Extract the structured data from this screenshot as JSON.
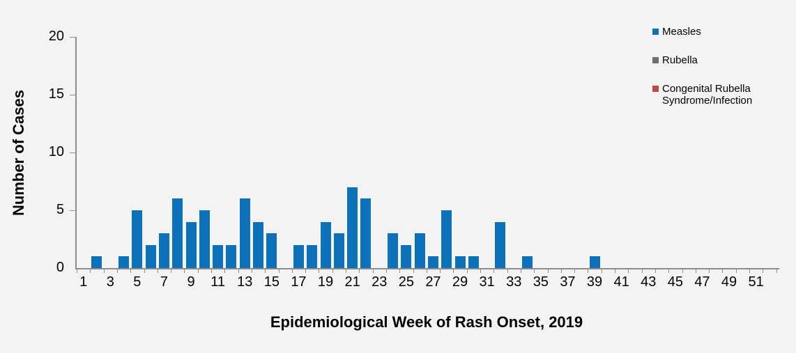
{
  "page": {
    "background": "#F3F3F3"
  },
  "chart_data": {
    "type": "bar",
    "title": "",
    "xlabel": "Epidemiological Week of Rash Onset, 2019",
    "ylabel": "Number of Cases",
    "categories": [
      1,
      2,
      3,
      4,
      5,
      6,
      7,
      8,
      9,
      10,
      11,
      12,
      13,
      14,
      15,
      16,
      17,
      18,
      19,
      20,
      21,
      22,
      23,
      24,
      25,
      26,
      27,
      28,
      29,
      30,
      31,
      32,
      33,
      34,
      35,
      36,
      37,
      38,
      39,
      40,
      41,
      42,
      43,
      44,
      45,
      46,
      47,
      48,
      49,
      50,
      51,
      52
    ],
    "x_tick_labels": [
      "1",
      "3",
      "5",
      "7",
      "9",
      "11",
      "13",
      "15",
      "17",
      "19",
      "21",
      "23",
      "25",
      "27",
      "29",
      "31",
      "33",
      "35",
      "37",
      "39",
      "41",
      "43",
      "45",
      "47",
      "49",
      "51"
    ],
    "y_ticks": [
      0,
      5,
      10,
      15,
      20
    ],
    "ylim": [
      0,
      20
    ],
    "grid": false,
    "legend_position": "top-right",
    "axis_color": "#8C8C8C",
    "text_color": "#000000",
    "series": [
      {
        "name": "Measles",
        "color": "#0D72B9",
        "values": [
          0,
          1,
          0,
          1,
          5,
          2,
          3,
          6,
          4,
          5,
          2,
          2,
          6,
          4,
          3,
          0,
          2,
          2,
          4,
          3,
          7,
          6,
          0,
          3,
          2,
          3,
          1,
          5,
          1,
          1,
          0,
          4,
          0,
          1,
          0,
          0,
          0,
          0,
          1,
          0,
          0,
          0,
          0,
          0,
          0,
          0,
          0,
          0,
          0,
          0,
          0,
          0
        ]
      },
      {
        "name": "Rubella",
        "color": "#6E6E6E",
        "values": [
          0,
          0,
          0,
          0,
          0,
          0,
          0,
          0,
          0,
          0,
          0,
          0,
          0,
          0,
          0,
          0,
          0,
          0,
          0,
          0,
          0,
          0,
          0,
          0,
          0,
          0,
          0,
          0,
          0,
          0,
          0,
          0,
          0,
          0,
          0,
          0,
          0,
          0,
          0,
          0,
          0,
          0,
          0,
          0,
          0,
          0,
          0,
          0,
          0,
          0,
          0,
          0
        ]
      },
      {
        "name": "Congenital Rubella Syndrome/Infection",
        "color": "#BE4B48",
        "values": [
          0,
          0,
          0,
          0,
          0,
          0,
          0,
          0,
          0,
          0,
          0,
          0,
          0,
          0,
          0,
          0,
          0,
          0,
          0,
          0,
          0,
          0,
          0,
          0,
          0,
          0,
          0,
          0,
          0,
          0,
          0,
          0,
          0,
          0,
          0,
          0,
          0,
          0,
          0,
          0,
          0,
          0,
          0,
          0,
          0,
          0,
          0,
          0,
          0,
          0,
          0,
          0
        ]
      }
    ]
  }
}
